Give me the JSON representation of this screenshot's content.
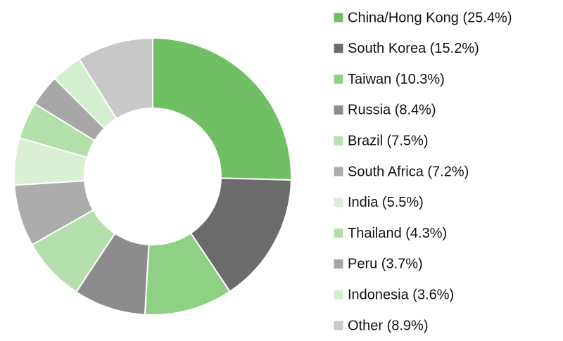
{
  "chart_data": {
    "type": "pie",
    "categories": [
      "China/Hong Kong (25.4%)",
      "South Korea (15.2%)",
      "Taiwan (10.3%)",
      "Russia (8.4%)",
      "Brazil (7.5%)",
      "South Africa (7.2%)",
      "India (5.5%)",
      "Thailand (4.3%)",
      "Peru (3.7%)",
      "Indonesia (3.6%)",
      "Other (8.9%)"
    ],
    "values": [
      25.4,
      15.2,
      10.3,
      8.4,
      7.5,
      7.2,
      5.5,
      4.3,
      3.7,
      3.6,
      8.9
    ],
    "colors": [
      "#70bf65",
      "#6b6b6b",
      "#8fd184",
      "#8c8c8c",
      "#b5e0ad",
      "#acacac",
      "#d9f0d4",
      "#b2dfaa",
      "#a6a6a6",
      "#d4efcf",
      "#c8c8c8"
    ]
  }
}
